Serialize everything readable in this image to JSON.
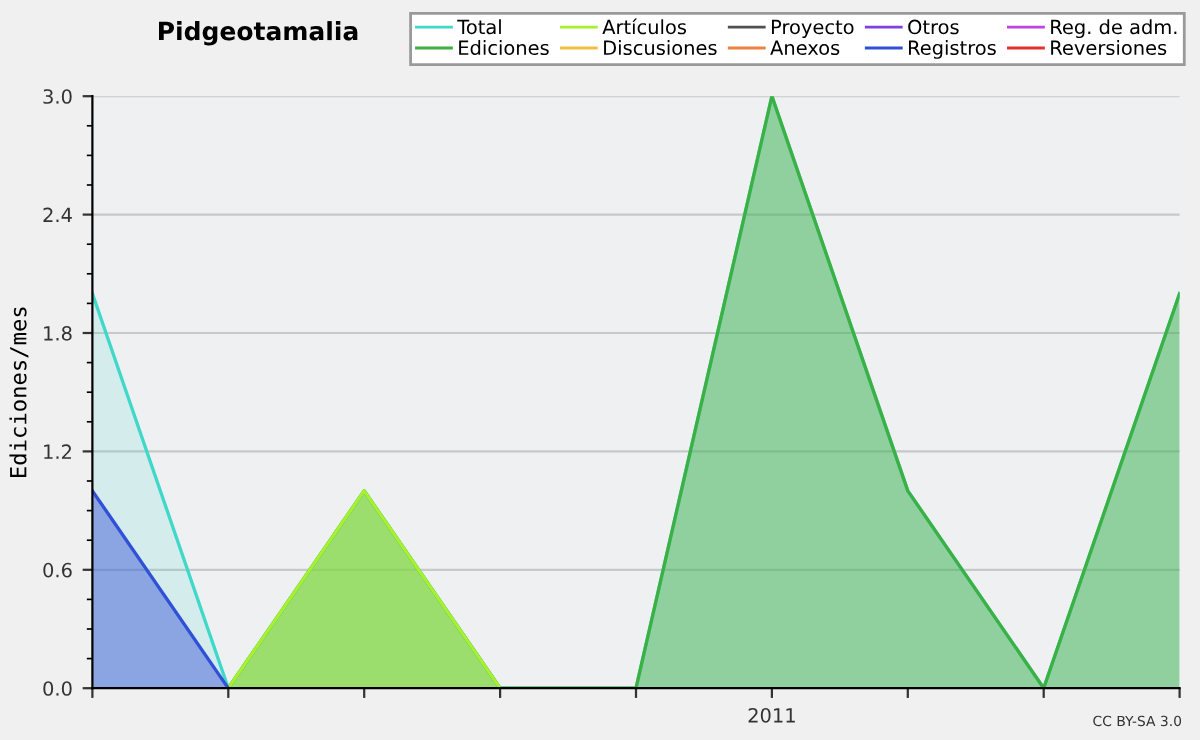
{
  "chart_data": {
    "type": "area",
    "title": "Pidgeotamalia",
    "ylabel": "Ediciones/mes",
    "categories": [
      null,
      null,
      null,
      null,
      null,
      "2011",
      null,
      null,
      null
    ],
    "series": [
      {
        "name": "Total",
        "color": "#40d8c8",
        "values": [
          2,
          0,
          1,
          0,
          0,
          3,
          1,
          0,
          2
        ]
      },
      {
        "name": "Ediciones",
        "color": "#3cb043",
        "values": [
          null,
          0,
          1,
          0,
          0,
          3,
          1,
          0,
          2
        ]
      },
      {
        "name": "Artículos",
        "color": "#a8f030",
        "values": [
          null,
          0,
          1,
          0,
          null,
          null,
          null,
          null,
          null
        ]
      },
      {
        "name": "Discusiones",
        "color": "#f0c040",
        "values": [
          null,
          null,
          null,
          null,
          null,
          null,
          null,
          null,
          null
        ]
      },
      {
        "name": "Proyecto",
        "color": "#505050",
        "values": [
          null,
          null,
          null,
          null,
          null,
          null,
          null,
          null,
          null
        ]
      },
      {
        "name": "Anexos",
        "color": "#f08040",
        "values": [
          null,
          null,
          null,
          null,
          null,
          null,
          null,
          null,
          null
        ]
      },
      {
        "name": "Otros",
        "color": "#8040e0",
        "values": [
          null,
          null,
          null,
          null,
          null,
          null,
          null,
          null,
          null
        ]
      },
      {
        "name": "Registros",
        "color": "#3050d8",
        "values": [
          1,
          0,
          null,
          null,
          null,
          null,
          null,
          null,
          null
        ]
      },
      {
        "name": "Reg. de adm.",
        "color": "#c040e0",
        "values": [
          null,
          null,
          null,
          null,
          null,
          null,
          null,
          null,
          null
        ]
      },
      {
        "name": "Reversiones",
        "color": "#e03030",
        "values": [
          null,
          null,
          null,
          null,
          null,
          null,
          null,
          null,
          null
        ]
      }
    ],
    "ylim": [
      0,
      3.0
    ],
    "yticks": [
      {
        "value": 0,
        "label": "0.0"
      },
      {
        "value": 0.6,
        "label": "0.6"
      },
      {
        "value": 1.2,
        "label": "1.2"
      },
      {
        "value": 1.8,
        "label": "1.8"
      },
      {
        "value": 2.4,
        "label": "2.4"
      },
      {
        "value": 3.0,
        "label": "3.0"
      }
    ],
    "grid": "y",
    "legend": "top right",
    "annotations": [
      "CC BY-SA 3.0"
    ]
  }
}
